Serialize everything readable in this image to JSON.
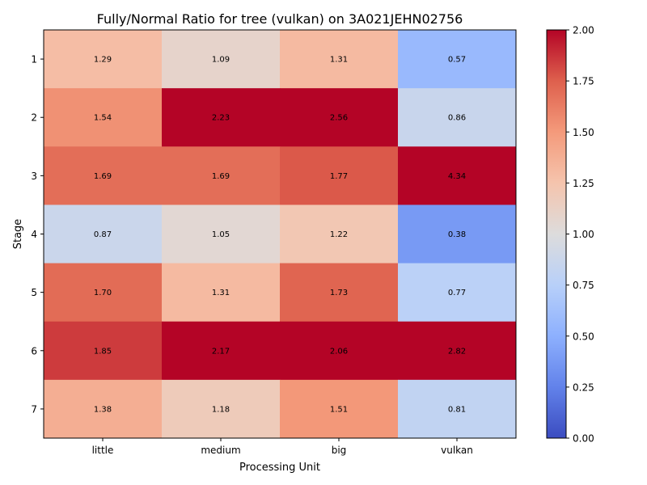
{
  "chart_data": {
    "type": "heatmap",
    "title": "Fully/Normal Ratio for tree (vulkan) on 3A021JEHN02756",
    "xlabel": "Processing Unit",
    "ylabel": "Stage",
    "x_categories": [
      "little",
      "medium",
      "big",
      "vulkan"
    ],
    "y_categories": [
      "1",
      "2",
      "3",
      "4",
      "5",
      "6",
      "7"
    ],
    "values": [
      [
        1.29,
        1.09,
        1.31,
        0.57
      ],
      [
        1.54,
        2.23,
        2.56,
        0.86
      ],
      [
        1.69,
        1.69,
        1.77,
        4.34
      ],
      [
        0.87,
        1.05,
        1.22,
        0.38
      ],
      [
        1.7,
        1.31,
        1.73,
        0.77
      ],
      [
        1.85,
        2.17,
        2.06,
        2.82
      ],
      [
        1.38,
        1.18,
        1.51,
        0.81
      ]
    ],
    "value_format": "2 decimals",
    "colormap": "coolwarm",
    "vmin": 0.0,
    "vmax": 2.0,
    "colorbar_ticks": [
      "0.00",
      "0.25",
      "0.50",
      "0.75",
      "1.00",
      "1.25",
      "1.50",
      "1.75",
      "2.00"
    ],
    "grid": false
  }
}
